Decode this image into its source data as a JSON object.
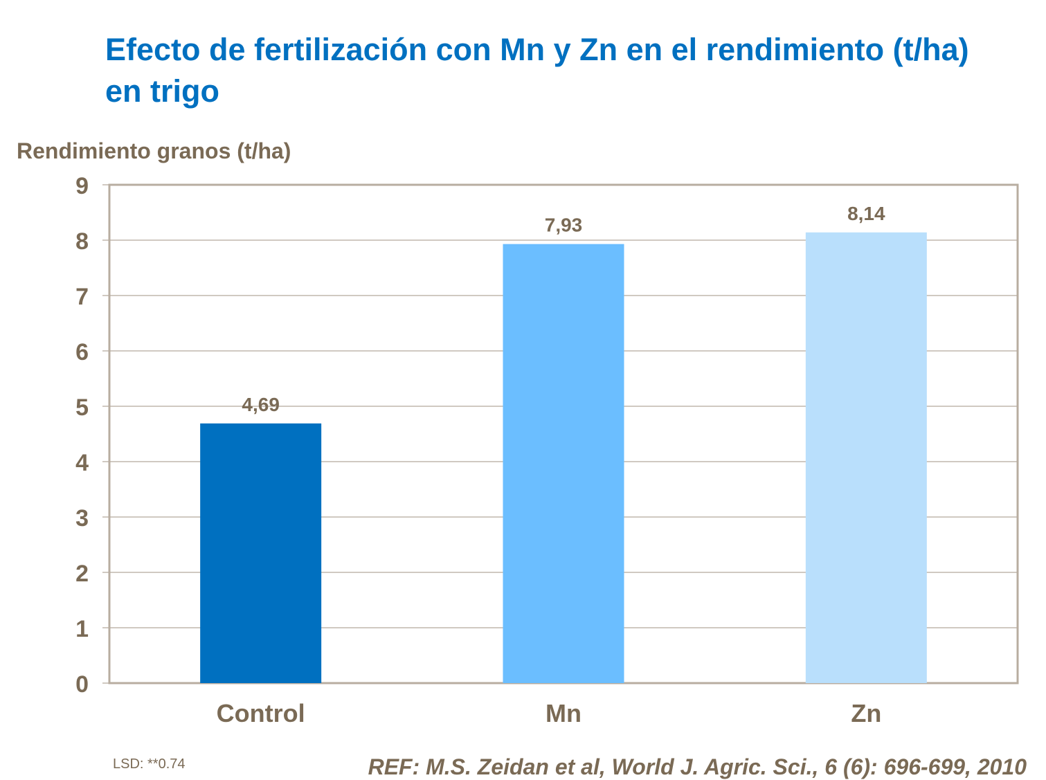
{
  "chart_data": {
    "type": "bar",
    "title": "Efecto de fertilización con Mn y Zn en el rendimiento (t/ha) en trigo",
    "ylabel": "Rendimiento granos (t/ha)",
    "xlabel": "",
    "categories": [
      "Control",
      "Mn",
      "Zn"
    ],
    "values": [
      4.69,
      7.93,
      8.14
    ],
    "data_labels": [
      "4,69",
      "7,93",
      "8,14"
    ],
    "colors": [
      "#0070C0",
      "#6BBEFF",
      "#B9DFFC"
    ],
    "ylim": [
      0,
      9
    ],
    "yticks": [
      0,
      1,
      2,
      3,
      4,
      5,
      6,
      7,
      8,
      9
    ],
    "grid": true,
    "legend": "none"
  },
  "notes": {
    "lsd": "LSD: **0.74",
    "reference": "REF: M.S. Zeidan et al, World J. Agric. Sci., 6 (6): 696-699, 2010"
  }
}
